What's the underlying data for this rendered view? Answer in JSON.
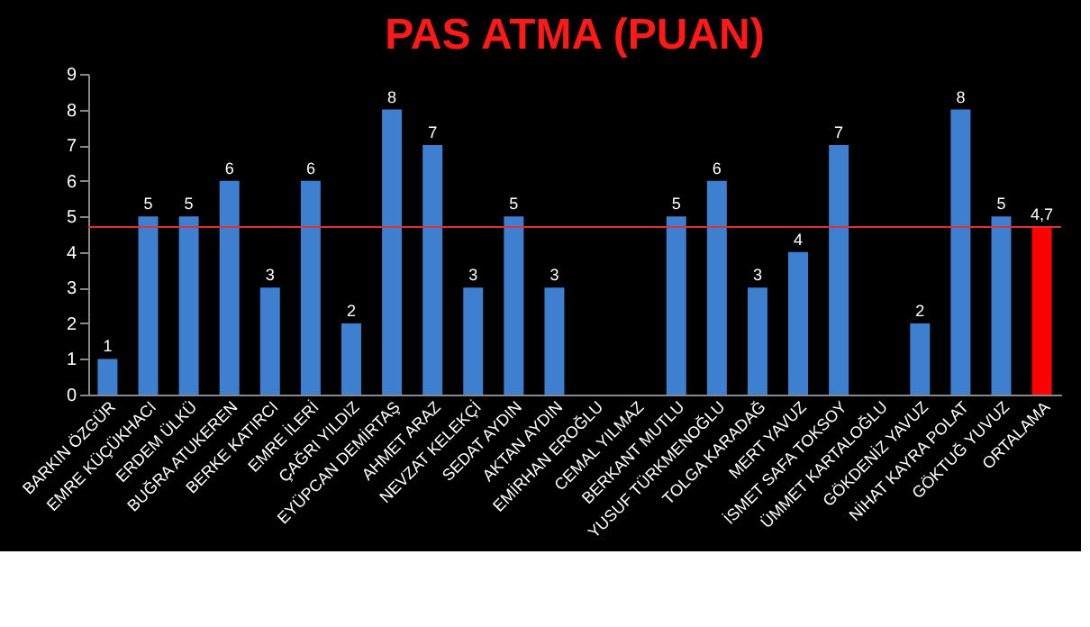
{
  "chart_data": {
    "type": "bar",
    "title": "PAS ATMA  (PUAN)",
    "categories": [
      "BARKIN ÖZGÜR",
      "EMRE KÜÇÜKHACI",
      "ERDEM ÜLKÜ",
      "BUĞRA ATUKEREN",
      "BERKE KATIRCI",
      "EMRE İLERİ",
      "ÇAĞRI YILDIZ",
      "EYÜPCAN DEMİRTAŞ",
      "AHMET ARAZ",
      "NEVZAT KELEKÇİ",
      "SEDAT AYDIN",
      "AKTAN AYDIN",
      "EMİRHAN EROĞLU",
      "CEMAL YILMAZ",
      "BERKANT MUTLU",
      "YUSUF TÜRKMENOĞLU",
      "TOLGA KARADAĞ",
      "MERT YAVUZ",
      "İSMET SAFA TOKSOY",
      "ÜMMET KARTALOĞLU",
      "GÖKDENİZ YAVUZ",
      "NİHAT KAYRA POLAT",
      "GÖKTUĞ YUVUZ",
      "ORTALAMA"
    ],
    "values": [
      1,
      5,
      5,
      6,
      3,
      6,
      2,
      8,
      7,
      3,
      5,
      3,
      null,
      null,
      5,
      6,
      3,
      4,
      7,
      null,
      2,
      8,
      5,
      4.7
    ],
    "value_labels": [
      "1",
      "5",
      "5",
      "6",
      "3",
      "6",
      "2",
      "8",
      "7",
      "3",
      "5",
      "3",
      null,
      null,
      "5",
      "6",
      "3",
      "4",
      "7",
      null,
      "2",
      "8",
      "5",
      "4,7"
    ],
    "colors": [
      "#3f7fd0",
      "#3f7fd0",
      "#3f7fd0",
      "#3f7fd0",
      "#3f7fd0",
      "#3f7fd0",
      "#3f7fd0",
      "#3f7fd0",
      "#3f7fd0",
      "#3f7fd0",
      "#3f7fd0",
      "#3f7fd0",
      "#3f7fd0",
      "#3f7fd0",
      "#3f7fd0",
      "#3f7fd0",
      "#3f7fd0",
      "#3f7fd0",
      "#3f7fd0",
      "#3f7fd0",
      "#3f7fd0",
      "#3f7fd0",
      "#3f7fd0",
      "#ff0000"
    ],
    "ylim": [
      0,
      9
    ],
    "yticks": [
      0,
      1,
      2,
      3,
      4,
      5,
      6,
      7,
      8,
      9
    ],
    "ref_lines": [
      {
        "axis": "y",
        "value": 4.7,
        "color": "#e03030"
      }
    ],
    "grid": false
  }
}
